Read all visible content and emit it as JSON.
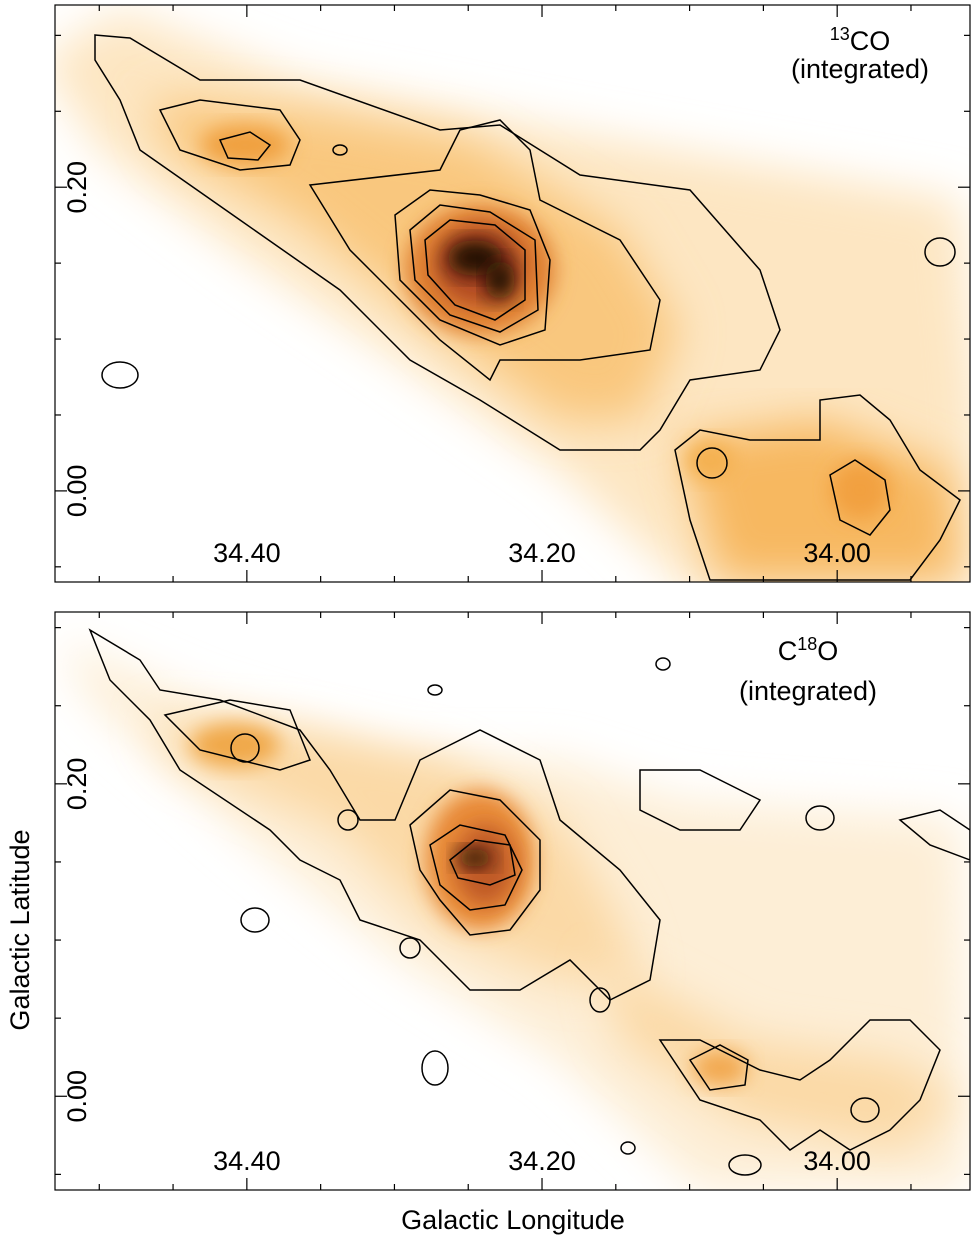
{
  "chart_data": [
    {
      "type": "map",
      "annotation": {
        "superscript": "13",
        "text": "CO",
        "note": "(integrated)"
      },
      "xlim": [
        34.53,
        33.91
      ],
      "ylim": [
        -0.06,
        0.32
      ],
      "xticks": [
        {
          "value": 34.4,
          "label": "34.40"
        },
        {
          "value": 34.2,
          "label": "34.20"
        },
        {
          "value": 34.0,
          "label": "34.00"
        }
      ],
      "yticks": [
        {
          "value": 0.2,
          "label": "0.20"
        },
        {
          "value": 0.0,
          "label": "0.00"
        }
      ],
      "xminor": [
        34.5,
        34.45,
        34.35,
        34.3,
        34.25,
        34.15,
        34.1,
        34.05,
        33.95
      ],
      "yminor": [
        0.3,
        0.25,
        0.15,
        0.1,
        0.05,
        -0.05
      ]
    },
    {
      "type": "map",
      "annotation": {
        "prefix": "C",
        "superscript": "18",
        "text": "O",
        "note": "(integrated)"
      },
      "xlim": [
        34.53,
        33.91
      ],
      "ylim": [
        -0.06,
        0.31
      ],
      "xticks": [
        {
          "value": 34.4,
          "label": "34.40"
        },
        {
          "value": 34.2,
          "label": "34.20"
        },
        {
          "value": 34.0,
          "label": "34.00"
        }
      ],
      "yticks": [
        {
          "value": 0.2,
          "label": "0.20"
        },
        {
          "value": 0.0,
          "label": "0.00"
        }
      ],
      "xminor": [
        34.5,
        34.45,
        34.35,
        34.3,
        34.25,
        34.15,
        34.1,
        34.05,
        33.95
      ],
      "yminor": [
        0.3,
        0.25,
        0.15,
        0.1,
        0.05,
        -0.05
      ]
    }
  ],
  "xlabel": "Galactic Longitude",
  "ylabel": "Galactic Latitude"
}
